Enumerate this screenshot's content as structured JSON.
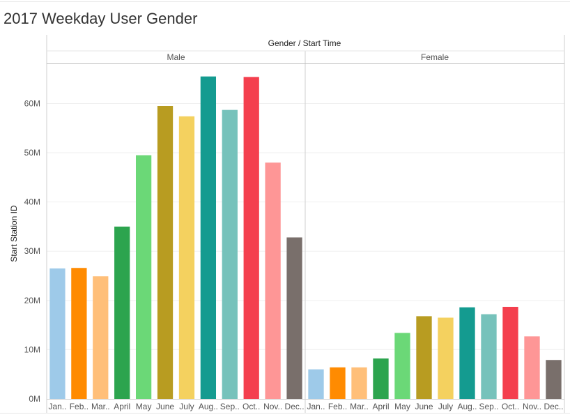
{
  "title": "2017 Weekday User Gender",
  "chart_data": {
    "type": "bar",
    "header": "Gender / Start Time",
    "ylabel": "Start Station ID",
    "ylim": [
      0,
      68000000
    ],
    "yticks": [
      0,
      10000000,
      20000000,
      30000000,
      40000000,
      50000000,
      60000000
    ],
    "ytick_labels": [
      "0M",
      "10M",
      "20M",
      "30M",
      "40M",
      "50M",
      "60M"
    ],
    "categories": [
      "Jan..",
      "Feb..",
      "Mar..",
      "April",
      "May",
      "June",
      "July",
      "Aug..",
      "Sep..",
      "Oct..",
      "Nov..",
      "Dec.."
    ],
    "colors": [
      "#9ecae9",
      "#ff8b01",
      "#ffbf79",
      "#2ca44e",
      "#6bd877",
      "#b89c21",
      "#f4d15f",
      "#149b90",
      "#76c2bb",
      "#f43f4e",
      "#fe9696",
      "#796f6b"
    ],
    "grid": true,
    "legend": "none",
    "series": [
      {
        "name": "Male",
        "values": [
          26500000,
          26600000,
          24900000,
          35000000,
          49500000,
          59500000,
          57400000,
          65500000,
          58700000,
          65400000,
          48000000,
          32800000
        ]
      },
      {
        "name": "Female",
        "values": [
          6000000,
          6400000,
          6400000,
          8200000,
          13400000,
          16800000,
          16500000,
          18600000,
          17200000,
          18700000,
          12700000,
          7900000
        ]
      }
    ]
  }
}
